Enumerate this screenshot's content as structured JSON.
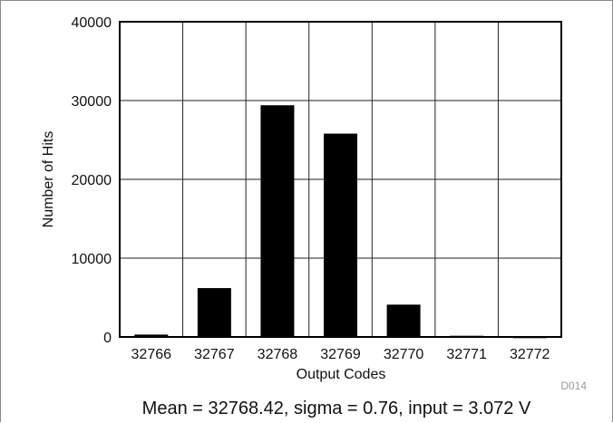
{
  "chart_data": {
    "type": "bar",
    "title": "",
    "xlabel": "Output Codes",
    "ylabel": "Number of Hits",
    "categories": [
      "32766",
      "32767",
      "32768",
      "32769",
      "32770",
      "32771",
      "32772"
    ],
    "values": [
      300,
      6200,
      29400,
      25800,
      4100,
      150,
      80
    ],
    "ylim": [
      0,
      40000
    ],
    "yticks": [
      0,
      10000,
      20000,
      30000,
      40000
    ],
    "ytick_labels": [
      "0",
      "10000",
      "20000",
      "30000",
      "40000"
    ],
    "grid": true,
    "legend": "none",
    "bar_color": "#000000"
  },
  "figure_code": "D014",
  "caption": "Mean = 32768.42, sigma = 0.76, input = 3.072 V"
}
